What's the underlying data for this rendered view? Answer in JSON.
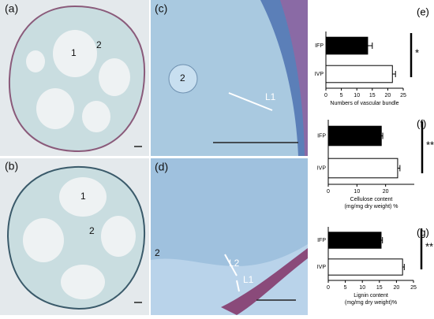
{
  "micrographs": [
    {
      "panel_label": "(a)",
      "labels": [
        "1",
        "2"
      ]
    },
    {
      "panel_label": "(c)",
      "labels": [
        "2",
        "L1"
      ]
    },
    {
      "panel_label": "(b)",
      "labels": [
        "1",
        "2"
      ]
    },
    {
      "panel_label": "(d)",
      "labels": [
        "2",
        "L2",
        "L1"
      ]
    }
  ],
  "chart_data": [
    {
      "type": "bar",
      "orientation": "horizontal",
      "panel_label": "(e)",
      "categories": [
        "IFP",
        "IVP"
      ],
      "values": [
        13.5,
        21.5
      ],
      "errors": [
        1.5,
        1
      ],
      "colors": [
        "#000000",
        "#ffffff"
      ],
      "xlim": [
        0,
        25
      ],
      "xticks": [
        0,
        5,
        10,
        15,
        20,
        25
      ],
      "xlabel": [
        "Numbers of vascular bundle"
      ],
      "annotation": "*"
    },
    {
      "type": "bar",
      "orientation": "horizontal",
      "panel_label": "(f)",
      "categories": [
        "IFP",
        "IVP"
      ],
      "values": [
        18.5,
        24.2
      ],
      "errors": [
        0.5,
        0.8
      ],
      "colors": [
        "#000000",
        "#ffffff"
      ],
      "xlim": [
        0,
        30
      ],
      "xticks": [
        0,
        10,
        20
      ],
      "xlabel": [
        "Cellulose content",
        "(mg/mg dry weight) %"
      ],
      "annotation": "**"
    },
    {
      "type": "bar",
      "orientation": "horizontal",
      "panel_label": "(g)",
      "categories": [
        "IFP",
        "IVP"
      ],
      "values": [
        15.5,
        21.8
      ],
      "errors": [
        0.4,
        0.5
      ],
      "colors": [
        "#000000",
        "#ffffff"
      ],
      "xlim": [
        0,
        25
      ],
      "xticks": [
        0,
        5,
        10,
        15,
        20,
        25
      ],
      "xlabel": [
        "Lignin content",
        "(mg/mg dry weight)%"
      ],
      "annotation": "**"
    }
  ]
}
